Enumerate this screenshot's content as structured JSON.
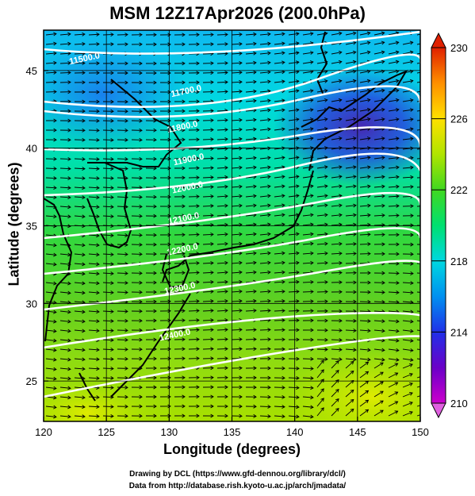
{
  "title": "MSM 12Z17Apr2026 (200.0hPa)",
  "xlabel": "Longitude (degrees)",
  "ylabel": "Latitude  (degrees)",
  "credits": [
    "Drawing by DCL (https://www.gfd-dennou.org/library/dcl/)",
    "Data from http://database.rish.kyoto-u.ac.jp/arch/jmadata/"
  ],
  "chart_data": {
    "type": "heatmap",
    "xlim": [
      120,
      150
    ],
    "ylim": [
      22.4,
      47.6
    ],
    "x_ticks": [
      120,
      125,
      130,
      135,
      140,
      145,
      150
    ],
    "y_ticks": [
      25,
      30,
      35,
      40,
      45
    ],
    "grid": true,
    "colorbar": {
      "min": 210,
      "max": 230,
      "ticks": [
        210,
        214,
        218,
        222,
        226,
        230
      ],
      "colors": [
        "#cc00cc",
        "#5a00c8",
        "#1e3cf0",
        "#00a0f0",
        "#00e0d0",
        "#20e060",
        "#40d020",
        "#b4e600",
        "#ffe000",
        "#ff8c00",
        "#e02000"
      ]
    },
    "contour_labels": [
      {
        "text": "11500.0",
        "lon": 123.3,
        "lat": 45.6
      },
      {
        "text": "11700.0",
        "lon": 131.4,
        "lat": 43.5
      },
      {
        "text": "11800.0",
        "lon": 131.1,
        "lat": 41.2
      },
      {
        "text": "11900.0",
        "lon": 131.6,
        "lat": 39.1
      },
      {
        "text": "12000.0",
        "lon": 131.5,
        "lat": 37.3
      },
      {
        "text": "12100.0",
        "lon": 131.2,
        "lat": 35.3
      },
      {
        "text": "12200.0",
        "lon": 131.1,
        "lat": 33.3
      },
      {
        "text": "12300.0",
        "lon": 130.9,
        "lat": 30.8
      },
      {
        "text": "12400.0",
        "lon": 130.5,
        "lat": 27.8
      }
    ],
    "contour_levels": [
      11500,
      11600,
      11700,
      11800,
      11900,
      12000,
      12100,
      12200,
      12300,
      12400
    ]
  }
}
